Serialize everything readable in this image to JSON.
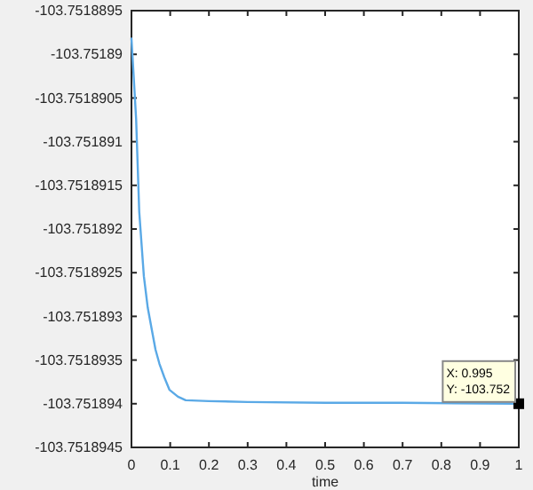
{
  "chart_data": {
    "type": "line",
    "xlabel": "time",
    "x": [
      0,
      0.005,
      0.012,
      0.02,
      0.032,
      0.042,
      0.052,
      0.062,
      0.072,
      0.085,
      0.098,
      0.12,
      0.14,
      0.2,
      0.3,
      0.5,
      0.7,
      1
    ],
    "series": [
      {
        "color": "#5aa9e6",
        "values": [
          -103.75188982,
          -103.7518902,
          -103.75189074,
          -103.7518918,
          -103.75189254,
          -103.7518929,
          -103.75189314,
          -103.75189338,
          -103.75189354,
          -103.7518937,
          -103.75189384,
          -103.75189392,
          -103.75189396,
          -103.75189397,
          -103.75189398,
          -103.75189399,
          -103.75189399,
          -103.751894
        ]
      }
    ],
    "xlim": [
      0,
      1
    ],
    "xticks": [
      0,
      0.1,
      0.2,
      0.3,
      0.4,
      0.5,
      0.6,
      0.7,
      0.8,
      0.9,
      1
    ],
    "ylim": [
      -103.7518945,
      -103.7518895
    ],
    "yticks": [
      -103.7518945,
      -103.751894,
      -103.7518935,
      -103.751893,
      -103.7518925,
      -103.751892,
      -103.7518915,
      -103.751891,
      -103.7518905,
      -103.75189,
      -103.7518895
    ],
    "grid": false,
    "marker": "none",
    "line_style": "solid",
    "annotations": [
      "X: 0.995",
      "Y: -103.752"
    ]
  }
}
